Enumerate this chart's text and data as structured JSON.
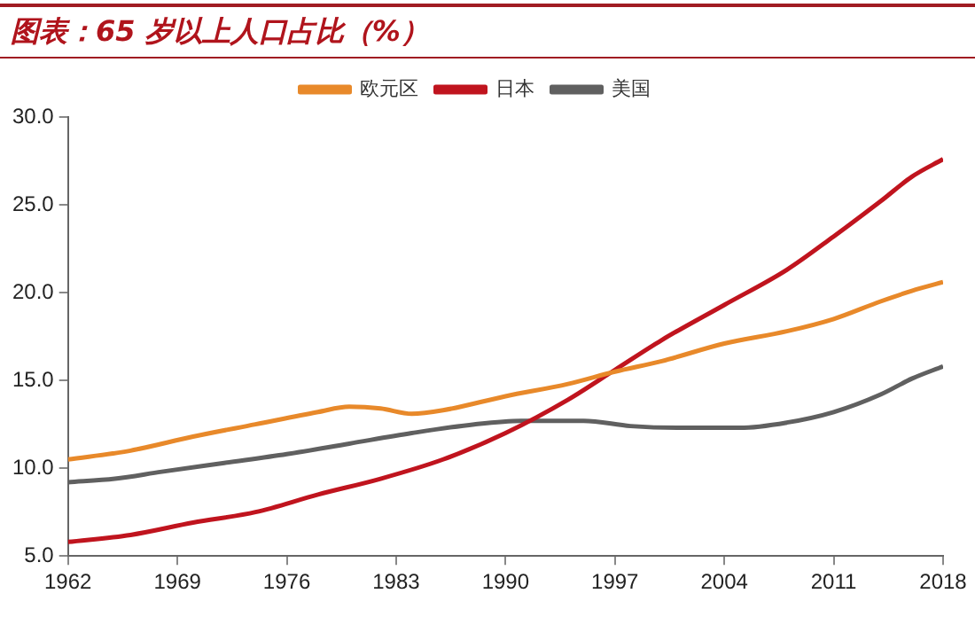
{
  "chart_data": {
    "type": "line",
    "title": "图表：65 岁以上人口占比（%）",
    "xlim": [
      1962,
      2018
    ],
    "xticks": [
      1962,
      1969,
      1976,
      1983,
      1990,
      1997,
      2004,
      2011,
      2018
    ],
    "ylim": [
      5,
      30
    ],
    "yticks": [
      {
        "value": 5,
        "label": "5.0"
      },
      {
        "value": 10,
        "label": "10.0"
      },
      {
        "value": 15,
        "label": "15.0"
      },
      {
        "value": 20,
        "label": "20.0"
      },
      {
        "value": 25,
        "label": "25.0"
      },
      {
        "value": 30,
        "label": "30.0"
      }
    ],
    "grid": false,
    "legend": "top",
    "marker": "none",
    "line_style": "solid",
    "series": [
      {
        "name": "欧元区",
        "color": "#e8892a",
        "x": [
          1962,
          1966,
          1970,
          1974,
          1978,
          1980,
          1982,
          1984,
          1986,
          1990,
          1994,
          1997,
          2000,
          2004,
          2008,
          2011,
          2014,
          2016,
          2018
        ],
        "values": [
          10.5,
          11.0,
          11.8,
          12.5,
          13.2,
          13.5,
          13.4,
          13.1,
          13.3,
          14.1,
          14.8,
          15.5,
          16.1,
          17.1,
          17.8,
          18.5,
          19.5,
          20.1,
          20.6
        ]
      },
      {
        "name": "日本",
        "color": "#c0141e",
        "x": [
          1962,
          1966,
          1970,
          1974,
          1978,
          1982,
          1986,
          1990,
          1994,
          1997,
          2000,
          2004,
          2008,
          2011,
          2014,
          2016,
          2018
        ],
        "values": [
          5.8,
          6.2,
          6.9,
          7.5,
          8.5,
          9.4,
          10.5,
          12.0,
          13.9,
          15.6,
          17.3,
          19.3,
          21.3,
          23.2,
          25.2,
          26.6,
          27.6
        ]
      },
      {
        "name": "美国",
        "color": "#606060",
        "x": [
          1962,
          1965,
          1968,
          1972,
          1976,
          1980,
          1984,
          1988,
          1991,
          1995,
          1998,
          2001,
          2005,
          2008,
          2011,
          2014,
          2016,
          2018
        ],
        "values": [
          9.2,
          9.4,
          9.8,
          10.3,
          10.8,
          11.4,
          12.0,
          12.5,
          12.7,
          12.7,
          12.4,
          12.3,
          12.3,
          12.6,
          13.2,
          14.2,
          15.1,
          15.8
        ]
      }
    ]
  }
}
